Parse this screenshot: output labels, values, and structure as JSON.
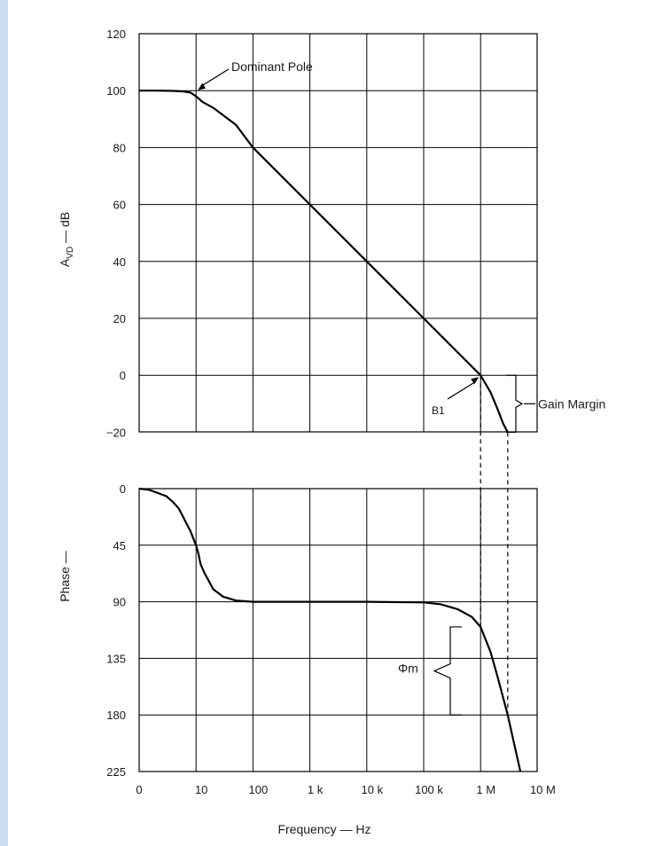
{
  "chart_data": [
    {
      "type": "line",
      "panel": "gain",
      "ylabel": "A",
      "ylabel_subscript": "VD",
      "ylabel_suffix": " — dB",
      "y_ticks": [
        "120",
        "100",
        "80",
        "60",
        "40",
        "20",
        "0",
        "−20"
      ],
      "ylim": [
        -20,
        120
      ],
      "x_scale": "log",
      "series": [
        {
          "x": [
            1,
            2,
            4,
            6,
            8,
            10,
            13,
            20,
            50,
            100,
            1000,
            10000,
            100000,
            1000000,
            1500000,
            2000000,
            2500000,
            3000000
          ],
          "y": [
            100,
            100,
            99.9,
            99.7,
            99.3,
            98,
            96,
            94,
            88,
            80,
            60,
            40,
            20,
            0,
            -6,
            -12,
            -17,
            -20
          ]
        }
      ],
      "annotations": [
        {
          "text": "Dominant Pole",
          "x": 10,
          "y": 100
        },
        {
          "text": "B1",
          "x": 1000000,
          "y": 0
        },
        {
          "text": "Gain Margin",
          "x": 3000000,
          "y": -10
        }
      ]
    },
    {
      "type": "line",
      "panel": "phase",
      "ylabel": "Phase —",
      "y_ticks": [
        "0",
        "45",
        "90",
        "135",
        "180",
        "225"
      ],
      "ylim": [
        0,
        225
      ],
      "y_inverted": true,
      "x_scale": "log",
      "xlabel": "Frequency — Hz",
      "x_ticks": [
        "0",
        "10",
        "100",
        "1 k",
        "10 k",
        "100 k",
        "1 M",
        "10 M"
      ],
      "series": [
        {
          "x": [
            1,
            1.5,
            2,
            3,
            4,
            5,
            6,
            7,
            8,
            9,
            10,
            11,
            12,
            14,
            17,
            20,
            30,
            50,
            100,
            1000,
            10000,
            100000,
            200000,
            400000,
            700000,
            1000000,
            1500000,
            2000000,
            3000000,
            5000000
          ],
          "y": [
            0,
            1,
            3,
            6,
            11,
            16,
            23,
            29,
            34,
            40,
            45,
            52,
            60,
            67,
            74,
            80,
            86,
            89,
            90,
            90,
            90,
            90.5,
            92,
            96,
            102,
            110,
            130,
            150,
            180,
            225
          ]
        }
      ],
      "annotations": [
        {
          "text": "Φm",
          "x": 1000000,
          "y": 145
        }
      ]
    }
  ]
}
